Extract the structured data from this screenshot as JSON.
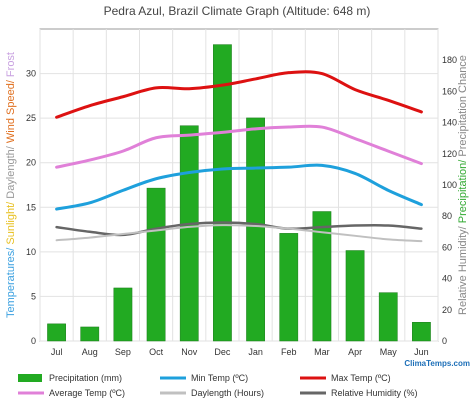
{
  "chart_data": {
    "type": "bar",
    "title": "Pedra Azul, Brazil Climate Graph (Altitude: 648 m)",
    "brand": "ClimaTemps.com",
    "ylabel_left_parts": [
      {
        "text": "Temperatures/ ",
        "color": "#3aa0e0"
      },
      {
        "text": "Sunlight/ ",
        "color": "#e8c020"
      },
      {
        "text": "Daylength/ ",
        "color": "#999999"
      },
      {
        "text": "Wind Speed/ ",
        "color": "#e07020"
      },
      {
        "text": "Frost",
        "color": "#c8a0e0"
      }
    ],
    "ylabel_right_parts": [
      {
        "text": "Relative Humidity/ ",
        "color": "#888888"
      },
      {
        "text": "Precipitation/ ",
        "color": "#33aa33"
      },
      {
        "text": "Precipitation Chance",
        "color": "#888888"
      }
    ],
    "categories": [
      "Jul",
      "Aug",
      "Sep",
      "Oct",
      "Nov",
      "Dec",
      "Jan",
      "Feb",
      "Mar",
      "Apr",
      "May",
      "Jun"
    ],
    "left_axis": {
      "ylim": [
        0,
        35
      ],
      "ticks": [
        "0",
        "5",
        "10",
        "15",
        "20",
        "25",
        "30"
      ]
    },
    "right_axis": {
      "ylim": [
        0,
        200
      ],
      "ticks": [
        "0",
        "20",
        "40",
        "60",
        "80",
        "100",
        "120",
        "140",
        "160",
        "180"
      ]
    },
    "grid": true,
    "legend_position": "bottom",
    "bars": {
      "name": "Precipitation (mm)",
      "axis": "right",
      "color": "#22aa22",
      "values": [
        11,
        9,
        34,
        98,
        138,
        190,
        143,
        69,
        83,
        58,
        31,
        12
      ]
    },
    "series": [
      {
        "name": "Min Temp (ºC)",
        "axis": "left",
        "color": "#1ea0dc",
        "width": 3,
        "values": [
          14.8,
          15.5,
          16.9,
          18.2,
          18.9,
          19.3,
          19.4,
          19.5,
          19.7,
          18.8,
          16.9,
          15.3
        ]
      },
      {
        "name": "Max Temp (ºC)",
        "axis": "left",
        "color": "#dd1111",
        "width": 3,
        "values": [
          25.1,
          26.4,
          27.4,
          28.4,
          28.3,
          28.7,
          29.4,
          30.1,
          30.0,
          28.2,
          27.0,
          25.7
        ]
      },
      {
        "name": "Average Temp (ºC)",
        "axis": "left",
        "color": "#e080d8",
        "width": 3,
        "values": [
          19.5,
          20.3,
          21.3,
          22.8,
          23.1,
          23.4,
          23.8,
          24.0,
          24.0,
          22.7,
          21.3,
          19.9
        ]
      },
      {
        "name": "Daylength (Hours)",
        "axis": "left",
        "color": "#c0c0c0",
        "width": 2,
        "values": [
          11.3,
          11.6,
          12.0,
          12.4,
          12.8,
          13.0,
          12.9,
          12.6,
          12.2,
          11.8,
          11.4,
          11.2
        ]
      },
      {
        "name": "Relative Humidity (%)",
        "axis": "right",
        "color": "#666666",
        "width": 2.5,
        "values": [
          73,
          70,
          68,
          72,
          75,
          76,
          75,
          72,
          73,
          74,
          74,
          72
        ]
      }
    ],
    "legend": [
      {
        "label": "Precipitation (mm)",
        "color": "#22aa22",
        "kind": "bar"
      },
      {
        "label": "Min Temp (ºC)",
        "color": "#1ea0dc",
        "kind": "line"
      },
      {
        "label": "Max Temp (ºC)",
        "color": "#dd1111",
        "kind": "line"
      },
      {
        "label": "Average Temp (ºC)",
        "color": "#e080d8",
        "kind": "line"
      },
      {
        "label": "Daylength (Hours)",
        "color": "#c0c0c0",
        "kind": "line"
      },
      {
        "label": "Relative Humidity (%)",
        "color": "#666666",
        "kind": "line"
      }
    ]
  }
}
